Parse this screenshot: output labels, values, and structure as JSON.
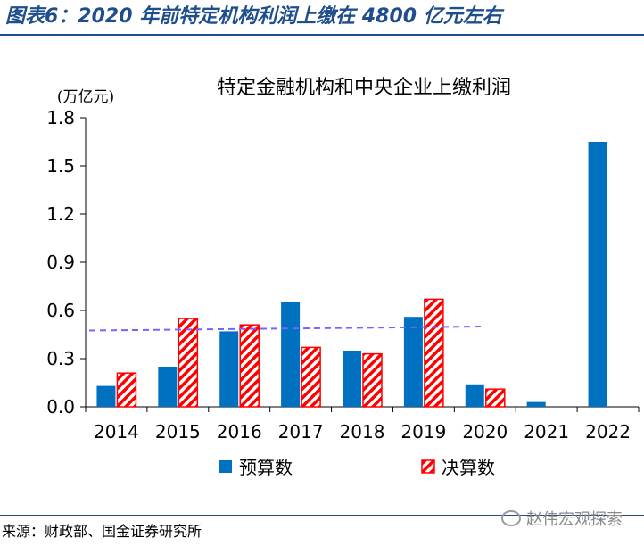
{
  "figure_title": "图表6：2020 年前特定机构利润上缴在 4800 亿元左右",
  "source": "来源：财政部、国金证券研究所",
  "watermark": {
    "text": "赵伟宏观探索",
    "icon": "wechat-icon"
  },
  "colors": {
    "title": "#1f4e8c",
    "budget": "#0070c0",
    "final": "#ff0000",
    "trend": "#7b61ff"
  },
  "chart_data": {
    "type": "bar",
    "title": "特定金融机构和中央企业上缴利润",
    "ylabel": "(万亿元)",
    "xlabel": "",
    "ylim": [
      0,
      1.8
    ],
    "yticks": [
      "0.0",
      "0.3",
      "0.6",
      "0.9",
      "1.2",
      "1.5",
      "1.8"
    ],
    "categories": [
      "2014",
      "2015",
      "2016",
      "2017",
      "2018",
      "2019",
      "2020",
      "2021",
      "2022"
    ],
    "series": [
      {
        "name": "预算数",
        "pattern": "solid",
        "values": [
          0.13,
          0.25,
          0.47,
          0.65,
          0.35,
          0.56,
          0.14,
          0.03,
          1.65
        ]
      },
      {
        "name": "决算数",
        "pattern": "hatched",
        "values": [
          0.21,
          0.55,
          0.51,
          0.37,
          0.33,
          0.67,
          0.11,
          null,
          null
        ]
      }
    ],
    "trend_line": {
      "style": "dashed",
      "from_category": "2014",
      "to_category": "2020",
      "values": [
        0.475,
        0.5
      ]
    },
    "grid": false,
    "legend_position": "bottom"
  }
}
